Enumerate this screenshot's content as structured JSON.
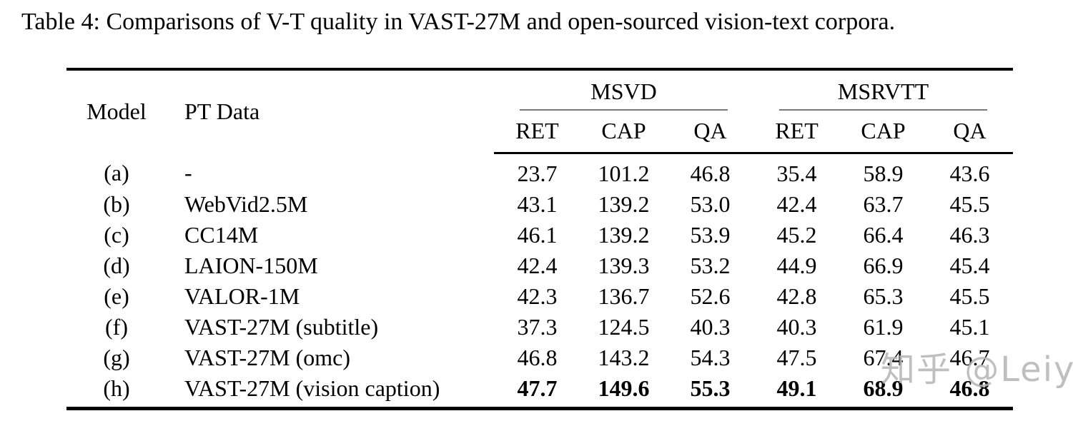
{
  "caption": "Table 4: Comparisons of V-T quality in VAST-27M and open-sourced vision-text corpora.",
  "table": {
    "headers": {
      "model": "Model",
      "pt_data": "PT Data"
    },
    "groups": [
      {
        "label": "MSVD",
        "subcols": [
          "RET",
          "CAP",
          "QA"
        ]
      },
      {
        "label": "MSRVTT",
        "subcols": [
          "RET",
          "CAP",
          "QA"
        ]
      }
    ],
    "rows": [
      {
        "model": "(a)",
        "pt_data": "-",
        "values": [
          "23.7",
          "101.2",
          "46.8",
          "35.4",
          "58.9",
          "43.6"
        ],
        "bold": false
      },
      {
        "model": "(b)",
        "pt_data": "WebVid2.5M",
        "values": [
          "43.1",
          "139.2",
          "53.0",
          "42.4",
          "63.7",
          "45.5"
        ],
        "bold": false
      },
      {
        "model": "(c)",
        "pt_data": "CC14M",
        "values": [
          "46.1",
          "139.2",
          "53.9",
          "45.2",
          "66.4",
          "46.3"
        ],
        "bold": false
      },
      {
        "model": "(d)",
        "pt_data": "LAION-150M",
        "values": [
          "42.4",
          "139.3",
          "53.2",
          "44.9",
          "66.9",
          "45.4"
        ],
        "bold": false
      },
      {
        "model": "(e)",
        "pt_data": "VALOR-1M",
        "values": [
          "42.3",
          "136.7",
          "52.6",
          "42.8",
          "65.3",
          "45.5"
        ],
        "bold": false
      },
      {
        "model": "(f)",
        "pt_data": "VAST-27M (subtitle)",
        "values": [
          "37.3",
          "124.5",
          "40.3",
          "40.3",
          "61.9",
          "45.1"
        ],
        "bold": false
      },
      {
        "model": "(g)",
        "pt_data": "VAST-27M (omc)",
        "values": [
          "46.8",
          "143.2",
          "54.3",
          "47.5",
          "67.4",
          "46.7"
        ],
        "bold": false
      },
      {
        "model": "(h)",
        "pt_data": "VAST-27M (vision caption)",
        "values": [
          "47.7",
          "149.6",
          "55.3",
          "49.1",
          "68.9",
          "46.8"
        ],
        "bold": true
      }
    ]
  },
  "watermark": {
    "text": "知乎 @Leiy",
    "color": "#b5b5b5"
  },
  "colors": {
    "background": "#ffffff",
    "text": "#000000",
    "rule_heavy": "#000000",
    "cmidrule": "#787878",
    "watermark": "#b5b5b5"
  },
  "chart_data": {
    "type": "table",
    "title": "Table 4: Comparisons of V-T quality in VAST-27M and open-sourced vision-text corpora.",
    "columns": [
      "Model",
      "PT Data",
      "MSVD RET",
      "MSVD CAP",
      "MSVD QA",
      "MSRVTT RET",
      "MSRVTT CAP",
      "MSRVTT QA"
    ],
    "rows": [
      [
        "(a)",
        "-",
        23.7,
        101.2,
        46.8,
        35.4,
        58.9,
        43.6
      ],
      [
        "(b)",
        "WebVid2.5M",
        43.1,
        139.2,
        53.0,
        42.4,
        63.7,
        45.5
      ],
      [
        "(c)",
        "CC14M",
        46.1,
        139.2,
        53.9,
        45.2,
        66.4,
        46.3
      ],
      [
        "(d)",
        "LAION-150M",
        42.4,
        139.3,
        53.2,
        44.9,
        66.9,
        45.4
      ],
      [
        "(e)",
        "VALOR-1M",
        42.3,
        136.7,
        52.6,
        42.8,
        65.3,
        45.5
      ],
      [
        "(f)",
        "VAST-27M (subtitle)",
        37.3,
        124.5,
        40.3,
        40.3,
        61.9,
        45.1
      ],
      [
        "(g)",
        "VAST-27M (omc)",
        46.8,
        143.2,
        54.3,
        47.5,
        67.4,
        46.7
      ],
      [
        "(h)",
        "VAST-27M (vision caption)",
        47.7,
        149.6,
        55.3,
        49.1,
        68.9,
        46.8
      ]
    ],
    "bold_row": "(h)"
  }
}
